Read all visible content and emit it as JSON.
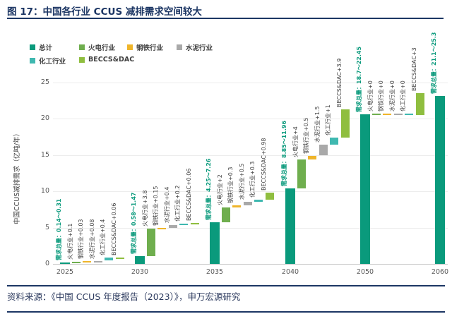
{
  "header": {
    "title": "图 17：中国各行业 CCUS 减排需求空间较大"
  },
  "footer": {
    "source": "资料来源：《中国 CCUS 年度报告（2023）》，申万宏源研究"
  },
  "colors": {
    "navy": "#1c3664",
    "total": "#0a9a7c",
    "thermal": "#6fae4e",
    "steel": "#efb52a",
    "cement": "#a9a9a9",
    "chemical": "#3fb8b0",
    "beccs": "#8fbe3f",
    "label_text": "#3f3f3f",
    "tick_text": "#595959"
  },
  "chart_data": {
    "type": "waterfall-bar",
    "title": "",
    "ylabel": "中国CCUS减排需求（亿吨/年）",
    "ylim": [
      0,
      25
    ],
    "yticks": [
      0,
      5,
      10,
      15,
      20,
      25
    ],
    "grid": true,
    "legend_position": "top-left",
    "legend": [
      {
        "label": "总计",
        "key": "total"
      },
      {
        "label": "火电行业",
        "key": "thermal"
      },
      {
        "label": "钢铁行业",
        "key": "steel"
      },
      {
        "label": "水泥行业",
        "key": "cement"
      },
      {
        "label": "化工行业",
        "key": "chemical"
      },
      {
        "label": "BECCS&DAC",
        "key": "beccs"
      }
    ],
    "categories": [
      "2025",
      "2030",
      "2035",
      "2040",
      "2050",
      "2060"
    ],
    "groups": [
      {
        "year": "2025",
        "total_label": "需求总量：0.14～0.31",
        "total_range": [
          0.14,
          0.31
        ],
        "increments": [
          {
            "key": "thermal",
            "label": "火电行业+0.1",
            "value": 0.1
          },
          {
            "key": "steel",
            "label": "钢铁行业+0.03",
            "value": 0.03
          },
          {
            "key": "cement",
            "label": "水泥行业+0.08",
            "value": 0.08
          },
          {
            "key": "chemical",
            "label": "化工行业+0.4",
            "value": 0.4
          },
          {
            "key": "beccs",
            "label": "BECCS&DAC+0.06",
            "value": 0.06
          }
        ]
      },
      {
        "year": "2030",
        "total_label": "需求总量：0.58～1.47",
        "total_range": [
          0.58,
          1.47
        ],
        "increments": [
          {
            "key": "thermal",
            "label": "火电行业+3.8",
            "value": 3.8
          },
          {
            "key": "steel",
            "label": "钢铁行业+0.15",
            "value": 0.15
          },
          {
            "key": "cement",
            "label": "水泥行业+0.4",
            "value": 0.4
          },
          {
            "key": "chemical",
            "label": "化工行业+0.2",
            "value": 0.2
          },
          {
            "key": "beccs",
            "label": "BECCS&DAC+0.06",
            "value": 0.06
          }
        ]
      },
      {
        "year": "2035",
        "total_label": "需求总量：4.25～7.26",
        "total_range": [
          4.25,
          7.26
        ],
        "increments": [
          {
            "key": "thermal",
            "label": "火电行业+2",
            "value": 2
          },
          {
            "key": "steel",
            "label": "钢铁行业+0.3",
            "value": 0.3
          },
          {
            "key": "cement",
            "label": "水泥行业+0.5",
            "value": 0.5
          },
          {
            "key": "chemical",
            "label": "化工行业+0.3",
            "value": 0.3
          },
          {
            "key": "beccs",
            "label": "BECCS&DAC+0.98",
            "value": 0.98
          }
        ]
      },
      {
        "year": "2040",
        "total_label": "需求总量：8.85～11.96",
        "total_range": [
          8.85,
          11.96
        ],
        "increments": [
          {
            "key": "thermal",
            "label": "火电行业+4",
            "value": 4
          },
          {
            "key": "steel",
            "label": "钢铁行业+0.5",
            "value": 0.5
          },
          {
            "key": "cement",
            "label": "水泥行业+1.5",
            "value": 1.5
          },
          {
            "key": "chemical",
            "label": "化工行业+1",
            "value": 1
          },
          {
            "key": "beccs",
            "label": "BECCS&DAC+3.9",
            "value": 3.9
          }
        ]
      },
      {
        "year": "2050",
        "total_label": "需求总量：18.7～22.45",
        "total_range": [
          18.7,
          22.45
        ],
        "increments": [
          {
            "key": "thermal",
            "label": "火电行业+0",
            "value": 0
          },
          {
            "key": "steel",
            "label": "钢铁行业+0",
            "value": 0
          },
          {
            "key": "cement",
            "label": "水泥行业+0",
            "value": 0
          },
          {
            "key": "chemical",
            "label": "化工行业+0",
            "value": 0
          },
          {
            "key": "beccs",
            "label": "BECCS&DAC+3",
            "value": 3
          }
        ]
      },
      {
        "year": "2060",
        "total_label": "需求总量：21.1～25.3",
        "total_range": [
          21.1,
          25.3
        ],
        "increments": []
      }
    ]
  }
}
